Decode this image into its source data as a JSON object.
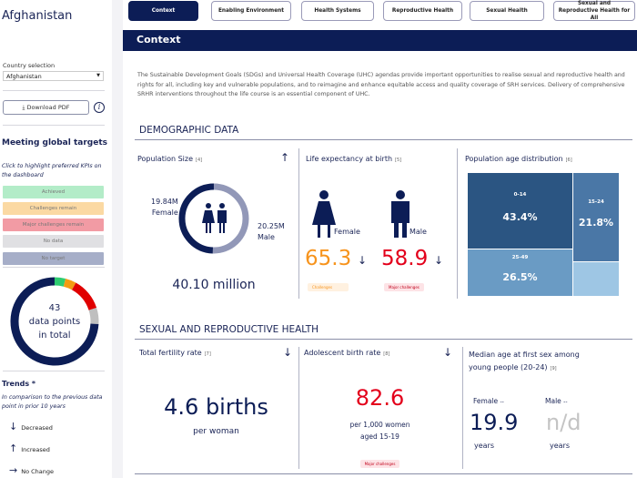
{
  "sidebar": {
    "country_title": "Afghanistan",
    "country_selection_label": "Country selection",
    "country_selected": "Afghanistan",
    "download_label": "Download PDF",
    "info_label": "i",
    "meeting_title": "Meeting global targets",
    "meeting_subtitle": "Click to highlight preferred KPIs on the dashboard",
    "legend": [
      {
        "label": "Achieved",
        "color": "#b3ecc8"
      },
      {
        "label": "Challenges remain",
        "color": "#fbd9a3"
      },
      {
        "label": "Major challenges remain",
        "color": "#f29ba4"
      },
      {
        "label": "No data",
        "color": "#e0e0e3"
      },
      {
        "label": "No target",
        "color": "#a6aec8"
      }
    ],
    "donut": {
      "count": "43",
      "line1": "data points",
      "line2": "in total",
      "segments": [
        {
          "status": "Achieved",
          "fraction": 0.04,
          "color": "#2ecc71"
        },
        {
          "status": "Challenges remain",
          "fraction": 0.04,
          "color": "#f39c12"
        },
        {
          "status": "Major challenges remain",
          "fraction": 0.12,
          "color": "#e00000"
        },
        {
          "status": "No data",
          "fraction": 0.06,
          "color": "#bfbfbf"
        },
        {
          "status": "No target",
          "fraction": 0.74,
          "color": "#0c1d56"
        }
      ]
    },
    "trends_title": "Trends *",
    "trends_subtitle": "In comparison to the previous data point in prior 10 years",
    "trends": [
      {
        "icon": "arrow-down-icon",
        "glyph": "↓",
        "label": "Decreased"
      },
      {
        "icon": "arrow-up-icon",
        "glyph": "↑",
        "label": "Increased"
      },
      {
        "icon": "arrow-right-icon",
        "glyph": "→",
        "label": "No Change"
      }
    ]
  },
  "tabs": [
    {
      "label": "Context",
      "active": true
    },
    {
      "label": "Enabling Environment"
    },
    {
      "label": "Health Systems"
    },
    {
      "label": "Reproductive Health"
    },
    {
      "label": "Sexual Health"
    },
    {
      "label": "Sexual and Reproductive Health for All"
    }
  ],
  "main": {
    "header": "Context",
    "intro": "The Sustainable Development Goals (SDGs) and Universal Health Coverage (UHC) agendas provide important opportunities to realise sexual and reproductive health and rights for all, including key and vulnerable populations, and to reimagine and enhance equitable access and quality coverage of SRH services. Delivery of comprehensive SRHR interventions throughout the life course is an essential component of UHC.",
    "demographic": {
      "title": "DEMOGRAPHIC DATA",
      "population": {
        "title": "Population Size",
        "ref": "[4]",
        "trend": "↑",
        "female_value": "19.84M",
        "female_label": "Female",
        "male_value": "20.25M",
        "male_label": "Male",
        "total": "40.10 million",
        "female_share": 0.495
      },
      "life": {
        "title": "Life expectancy at birth",
        "ref": "[5]",
        "female_label": "Female",
        "female_value": "65.3",
        "female_trend": "↓",
        "female_badge": "Challenges",
        "female_color": "#f7941d",
        "male_label": "Male",
        "male_value": "58.9",
        "male_trend": "↓",
        "male_badge": "Major challenges",
        "male_color": "#e3001b"
      },
      "age": {
        "title": "Population age distribution",
        "ref": "[6]",
        "groups": [
          {
            "label": "0-14",
            "value": "43.4%",
            "color": "#2b5582"
          },
          {
            "label": "25-49",
            "value": "26.5%",
            "color": "#6a9bc4"
          },
          {
            "label": "15-24",
            "value": "21.8%",
            "color": "#4a77a6"
          },
          {
            "label": "",
            "value": "",
            "color": "#9ec6e4"
          }
        ]
      }
    },
    "srh": {
      "title": "SEXUAL AND REPRODUCTIVE HEALTH",
      "tfr": {
        "title": "Total fertility rate",
        "ref": "[7]",
        "trend": "↓",
        "value": "4.6 births",
        "unit": "per woman"
      },
      "abr": {
        "title": "Adolescent birth rate",
        "ref": "[8]",
        "trend": "↓",
        "value": "82.6",
        "unit1": "per 1,000 women",
        "unit2": "aged 15-19",
        "badge": "Major challenges"
      },
      "median": {
        "title1": "Median age at first sex among",
        "title2": "young people (20-24)",
        "ref": "[9]",
        "female_label": "Female",
        "female_trend": "--",
        "female_value": "19.9",
        "female_unit": "years",
        "male_label": "Male",
        "male_trend": "--",
        "male_value": "n/d",
        "male_unit": "years"
      }
    }
  }
}
